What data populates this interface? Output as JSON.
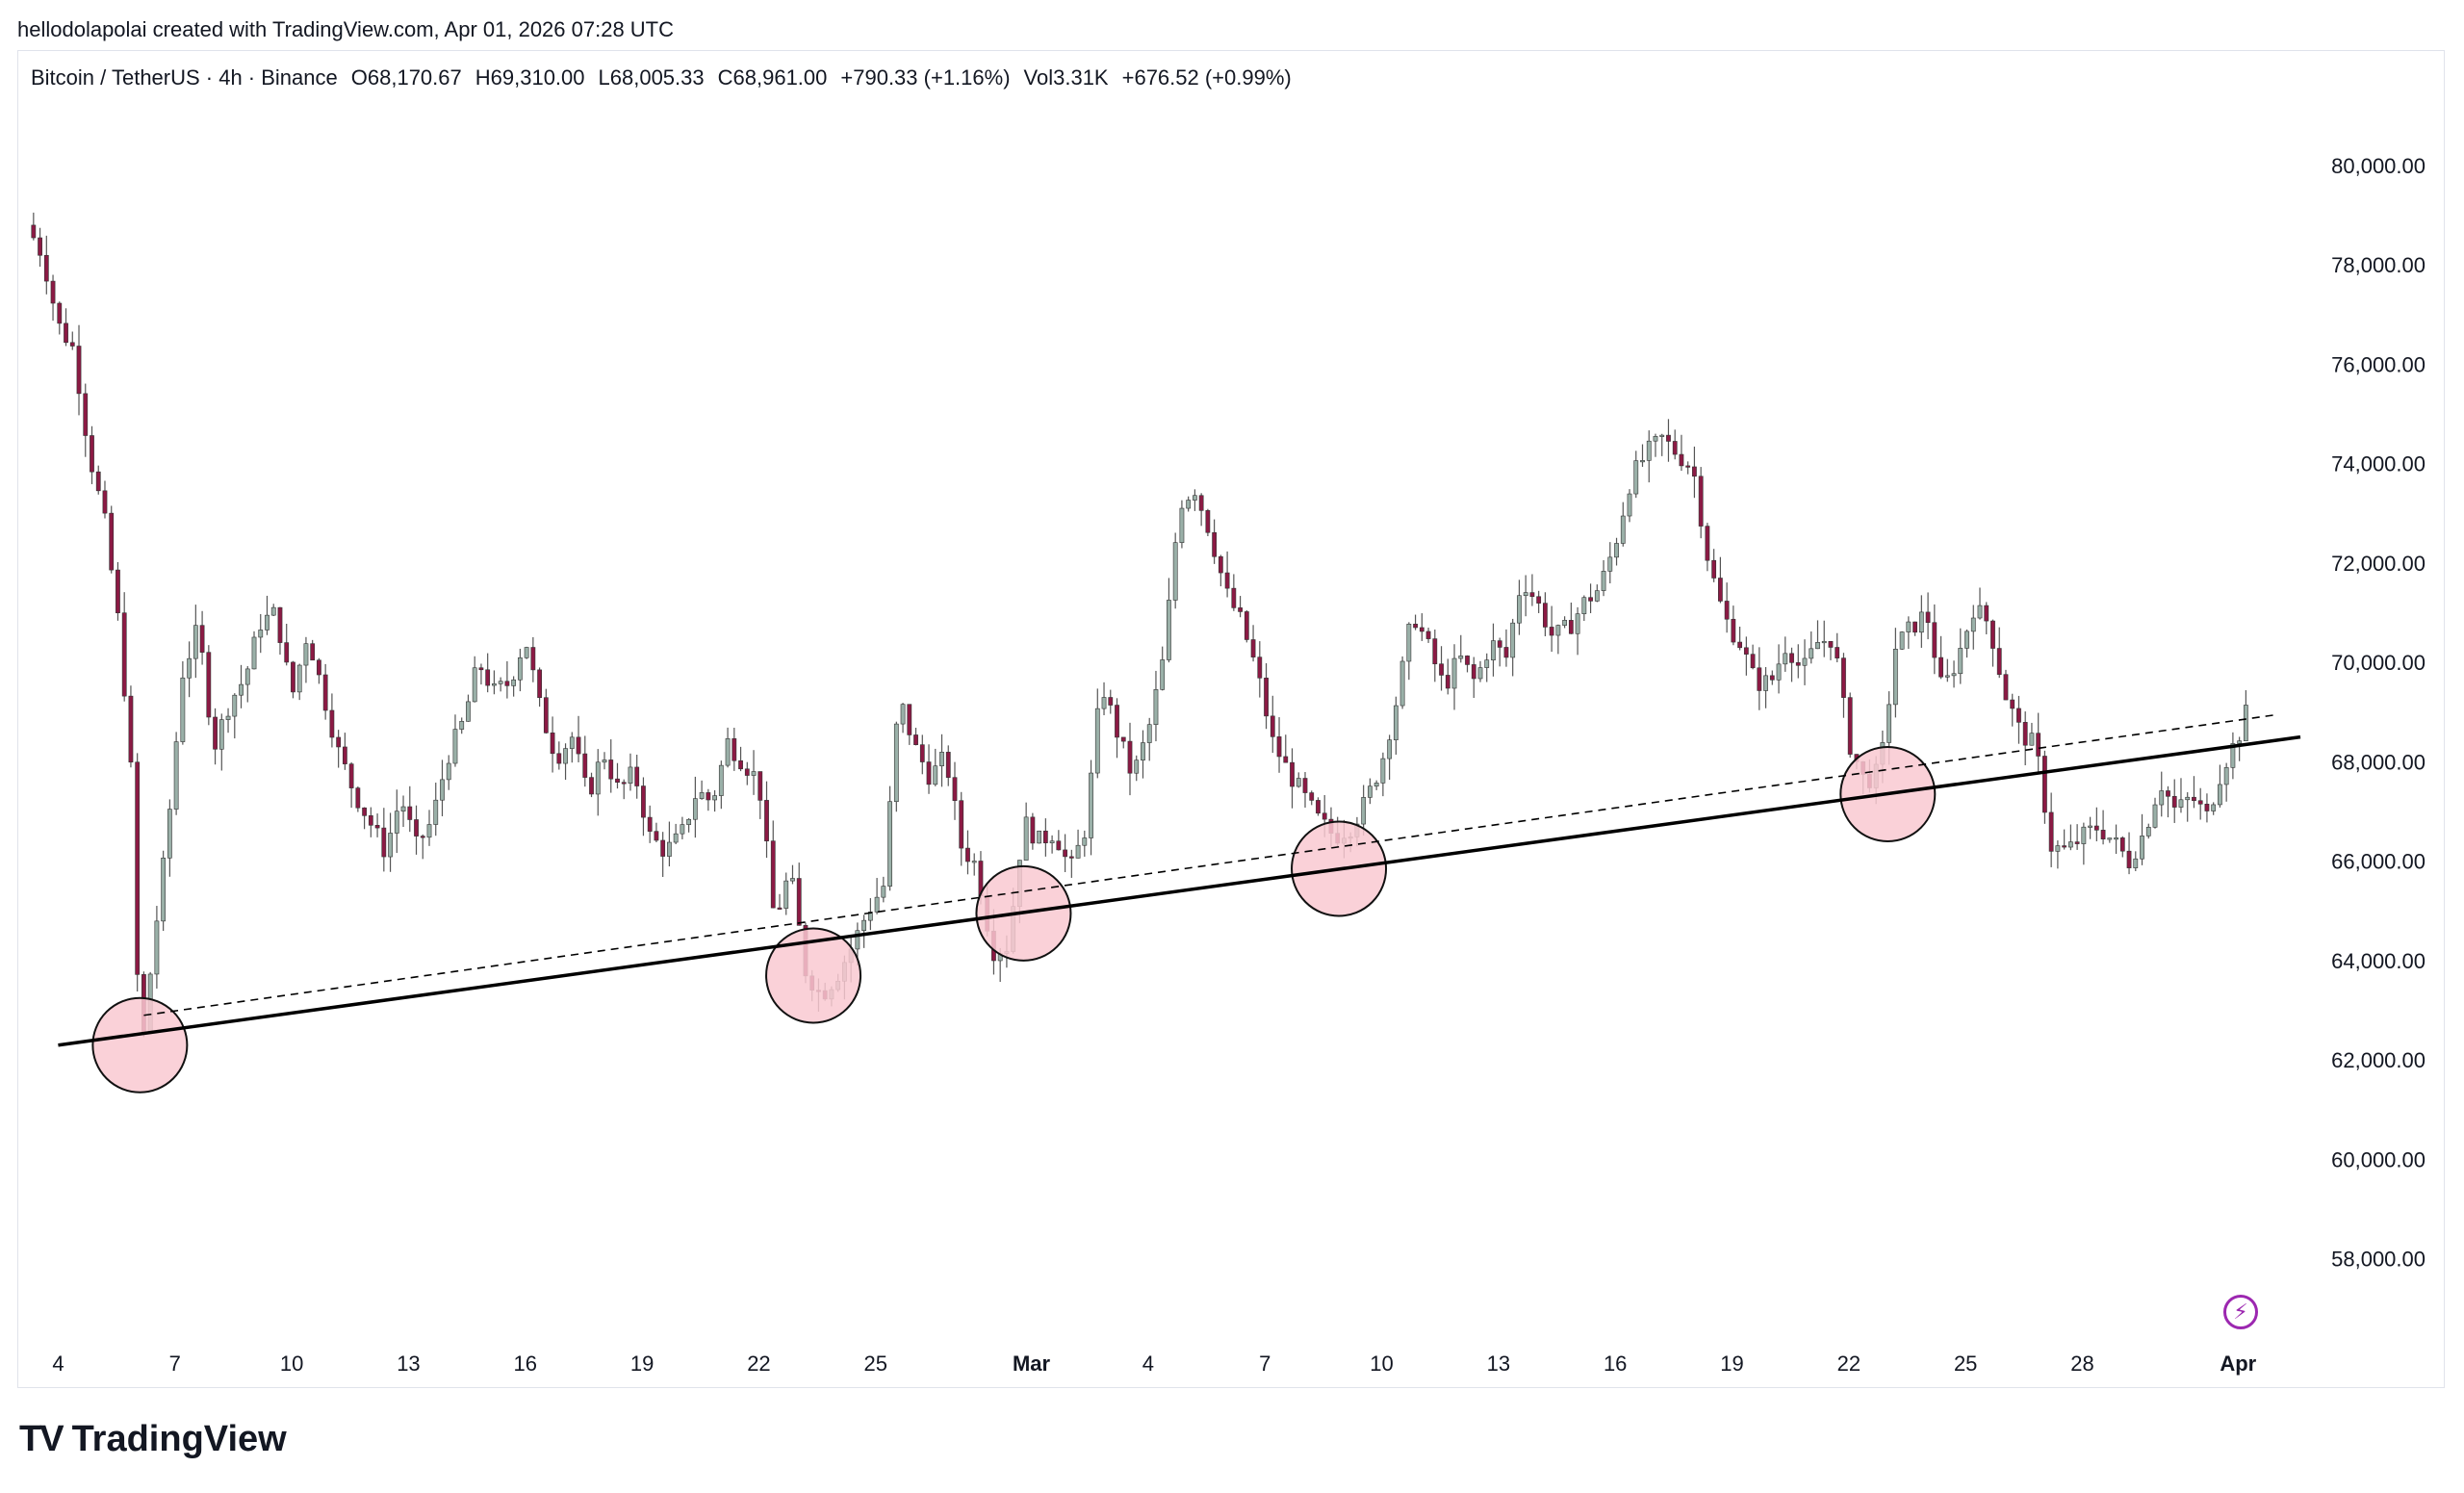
{
  "header": {
    "credit": "hellodolapolai created with TradingView.com, Apr 01, 2026 07:28 UTC"
  },
  "legend": {
    "symbol": "Bitcoin / TetherUS · 4h · Binance",
    "open": "O68,170.67",
    "high": "H69,310.00",
    "low": "L68,005.33",
    "close": "C68,961.00",
    "change": "+790.33 (+1.16%)",
    "volume": "Vol3.31K",
    "extra": "+676.52 (+0.99%)"
  },
  "footer": {
    "brand": "TradingView",
    "mark": "TV"
  },
  "colors": {
    "up": "#9ab0a8",
    "down": "#8b1a44",
    "circle_fill": "#f9c9d1",
    "line": "#000000"
  },
  "chart_data": {
    "type": "candlestick",
    "symbol": "BTCUSDT",
    "interval": "4h",
    "ylim": [
      56600,
      81200
    ],
    "yticks": [
      58000,
      60000,
      62000,
      64000,
      66000,
      68000,
      70000,
      72000,
      74000,
      76000,
      78000,
      80000
    ],
    "ytick_labels": [
      "58,000.00",
      "60,000.00",
      "62,000.00",
      "64,000.00",
      "66,000.00",
      "68,000.00",
      "70,000.00",
      "72,000.00",
      "74,000.00",
      "76,000.00",
      "78,000.00",
      "80,000.00"
    ],
    "xticks": [
      {
        "label": "4",
        "day": 4
      },
      {
        "label": "7",
        "day": 7
      },
      {
        "label": "10",
        "day": 10
      },
      {
        "label": "13",
        "day": 13
      },
      {
        "label": "16",
        "day": 16
      },
      {
        "label": "19",
        "day": 19
      },
      {
        "label": "22",
        "day": 22
      },
      {
        "label": "25",
        "day": 25
      },
      {
        "label": "Mar",
        "day": 29,
        "bold": true
      },
      {
        "label": "4",
        "day": 32
      },
      {
        "label": "7",
        "day": 35
      },
      {
        "label": "10",
        "day": 38
      },
      {
        "label": "13",
        "day": 41
      },
      {
        "label": "16",
        "day": 44
      },
      {
        "label": "19",
        "day": 47
      },
      {
        "label": "22",
        "day": 50
      },
      {
        "label": "25",
        "day": 53
      },
      {
        "label": "28",
        "day": 56
      },
      {
        "label": "Apr",
        "day": 60,
        "bold": true
      }
    ],
    "xlim_days": [
      3.0,
      61.6
    ],
    "price_path": [
      [
        3.2,
        78800
      ],
      [
        3.6,
        78200
      ],
      [
        4.0,
        76800
      ],
      [
        4.4,
        76300
      ],
      [
        4.8,
        74200
      ],
      [
        5.2,
        72800
      ],
      [
        5.6,
        70500
      ],
      [
        5.9,
        67500
      ],
      [
        6.05,
        63200
      ],
      [
        6.2,
        62500
      ],
      [
        6.4,
        64000
      ],
      [
        6.8,
        66500
      ],
      [
        7.2,
        69800
      ],
      [
        7.6,
        70700
      ],
      [
        8.0,
        68300
      ],
      [
        8.4,
        69200
      ],
      [
        8.8,
        69700
      ],
      [
        9.2,
        70800
      ],
      [
        9.6,
        71000
      ],
      [
        10.0,
        69300
      ],
      [
        10.4,
        70600
      ],
      [
        10.8,
        69400
      ],
      [
        11.2,
        68200
      ],
      [
        11.6,
        67400
      ],
      [
        12.0,
        66800
      ],
      [
        12.4,
        66200
      ],
      [
        12.8,
        67300
      ],
      [
        13.2,
        66300
      ],
      [
        13.6,
        66800
      ],
      [
        14.0,
        68100
      ],
      [
        14.4,
        68800
      ],
      [
        14.8,
        70000
      ],
      [
        15.2,
        69400
      ],
      [
        15.6,
        69600
      ],
      [
        16.0,
        70500
      ],
      [
        16.4,
        69000
      ],
      [
        16.8,
        68100
      ],
      [
        17.2,
        68500
      ],
      [
        17.6,
        67300
      ],
      [
        18.0,
        68200
      ],
      [
        18.4,
        67400
      ],
      [
        18.8,
        67800
      ],
      [
        19.2,
        66500
      ],
      [
        19.6,
        66200
      ],
      [
        20.0,
        66500
      ],
      [
        20.4,
        67400
      ],
      [
        20.8,
        67200
      ],
      [
        21.2,
        68400
      ],
      [
        21.6,
        68000
      ],
      [
        22.0,
        67600
      ],
      [
        22.4,
        64800
      ],
      [
        22.8,
        65800
      ],
      [
        23.2,
        63800
      ],
      [
        23.6,
        63300
      ],
      [
        24.0,
        63700
      ],
      [
        24.4,
        64300
      ],
      [
        24.8,
        65000
      ],
      [
        25.2,
        65500
      ],
      [
        25.6,
        69300
      ],
      [
        26.0,
        68300
      ],
      [
        26.4,
        67700
      ],
      [
        26.8,
        68100
      ],
      [
        27.2,
        66300
      ],
      [
        27.6,
        65900
      ],
      [
        28.0,
        64200
      ],
      [
        28.4,
        64300
      ],
      [
        28.8,
        66800
      ],
      [
        29.2,
        66400
      ],
      [
        29.6,
        66600
      ],
      [
        30.0,
        65800
      ],
      [
        30.4,
        66700
      ],
      [
        30.8,
        69600
      ],
      [
        31.2,
        68600
      ],
      [
        31.6,
        67700
      ],
      [
        32.0,
        68600
      ],
      [
        32.4,
        70100
      ],
      [
        32.8,
        73200
      ],
      [
        33.2,
        73500
      ],
      [
        33.6,
        72600
      ],
      [
        34.0,
        71400
      ],
      [
        34.4,
        70800
      ],
      [
        34.8,
        69800
      ],
      [
        35.2,
        68400
      ],
      [
        35.6,
        67800
      ],
      [
        36.0,
        67300
      ],
      [
        36.4,
        66800
      ],
      [
        36.8,
        66500
      ],
      [
        37.2,
        66700
      ],
      [
        37.6,
        67200
      ],
      [
        38.0,
        68000
      ],
      [
        38.4,
        69300
      ],
      [
        38.8,
        71000
      ],
      [
        39.2,
        70300
      ],
      [
        39.6,
        69500
      ],
      [
        40.0,
        70100
      ],
      [
        40.4,
        69600
      ],
      [
        40.8,
        70400
      ],
      [
        41.2,
        70100
      ],
      [
        41.6,
        71700
      ],
      [
        42.0,
        71200
      ],
      [
        42.4,
        70500
      ],
      [
        42.8,
        70700
      ],
      [
        43.2,
        71200
      ],
      [
        43.6,
        71500
      ],
      [
        44.0,
        72400
      ],
      [
        44.4,
        73700
      ],
      [
        44.8,
        74200
      ],
      [
        45.2,
        74500
      ],
      [
        45.6,
        74200
      ],
      [
        46.0,
        73900
      ],
      [
        46.4,
        72000
      ],
      [
        46.8,
        70900
      ],
      [
        47.2,
        70400
      ],
      [
        47.6,
        69600
      ],
      [
        48.0,
        69600
      ],
      [
        48.4,
        70400
      ],
      [
        48.8,
        69800
      ],
      [
        49.2,
        70400
      ],
      [
        49.6,
        70500
      ],
      [
        50.0,
        68400
      ],
      [
        50.4,
        67600
      ],
      [
        50.8,
        67800
      ],
      [
        51.2,
        70300
      ],
      [
        51.6,
        70700
      ],
      [
        52.0,
        71000
      ],
      [
        52.4,
        69400
      ],
      [
        52.8,
        70100
      ],
      [
        53.2,
        71100
      ],
      [
        53.6,
        70800
      ],
      [
        54.0,
        69400
      ],
      [
        54.4,
        68600
      ],
      [
        54.8,
        68300
      ],
      [
        55.2,
        66300
      ],
      [
        55.6,
        66200
      ],
      [
        56.0,
        66500
      ],
      [
        56.4,
        66700
      ],
      [
        56.8,
        66400
      ],
      [
        57.2,
        66000
      ],
      [
        57.6,
        66600
      ],
      [
        58.0,
        67600
      ],
      [
        58.4,
        67000
      ],
      [
        58.8,
        67300
      ],
      [
        59.2,
        66900
      ],
      [
        59.6,
        67900
      ],
      [
        60.0,
        68500
      ],
      [
        60.2,
        68961
      ]
    ],
    "annotations": {
      "trendline_solid": {
        "from": [
          4.0,
          62300
        ],
        "to": [
          61.6,
          68500
        ]
      },
      "trendline_dashed": {
        "from": [
          6.2,
          62900
        ],
        "to": [
          61.0,
          68950
        ]
      },
      "circles": [
        {
          "day": 6.1,
          "price": 62300
        },
        {
          "day": 23.4,
          "price": 63700
        },
        {
          "day": 28.8,
          "price": 64950
        },
        {
          "day": 36.9,
          "price": 65850
        },
        {
          "day": 51.0,
          "price": 67350
        }
      ]
    }
  }
}
